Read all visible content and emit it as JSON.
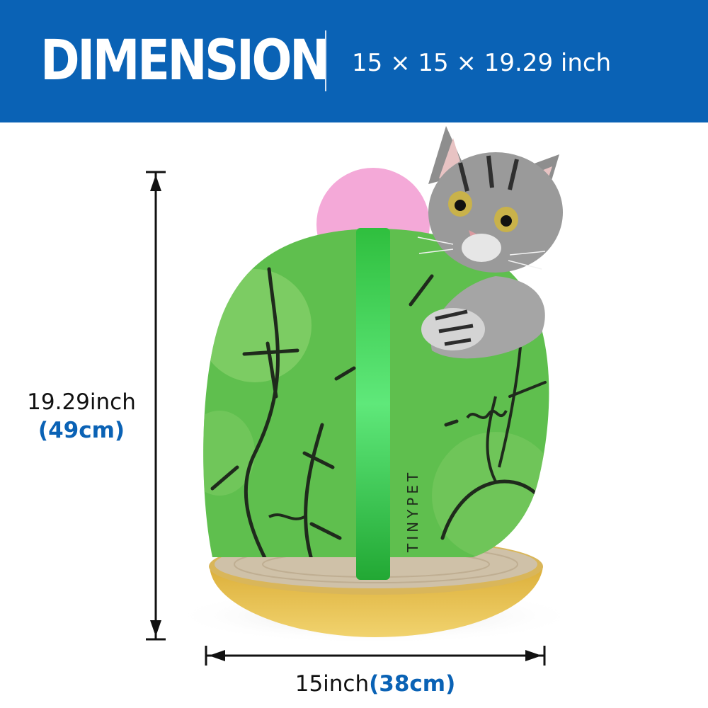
{
  "header": {
    "title": "DIMENSION",
    "dimensions": "15 × 15 × 19.29 inch"
  },
  "height_label": {
    "imperial": "19.29inch",
    "metric": "(49cm)"
  },
  "width_label": {
    "imperial": "15inch",
    "metric": "(38cm)"
  },
  "product": {
    "brand_mark": "TINYPET"
  },
  "colors": {
    "header_bg": "#0a62b5",
    "cactus_green": "#5fbf4e",
    "flower_pink": "#f4a9d8",
    "base_yellow": "#e9c24f",
    "accent_blue": "#0a62b5"
  }
}
